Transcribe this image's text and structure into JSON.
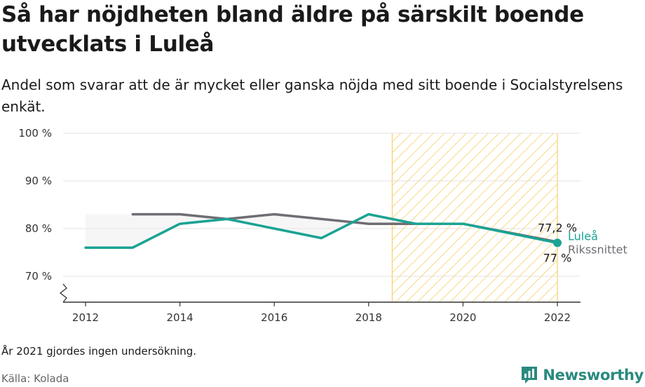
{
  "title": "Så har nöjdheten bland äldre på särskilt boende utvecklats i Luleå",
  "subtitle": "Andel som svarar att de är mycket eller ganska nöjda med sitt boende i Socialstyrelsens enkät.",
  "note": "År 2021 gjordes ingen undersökning.",
  "source": "Källa: Kolada",
  "brand": "Newsworthy",
  "colors": {
    "lulea": "#1aa393",
    "riket": "#6f6d74",
    "hatch": "#f7cf6a",
    "grid": "#e3e3e3"
  },
  "chart_data": {
    "type": "line",
    "x_ticks": [
      2012,
      2014,
      2016,
      2018,
      2020,
      2022
    ],
    "y_ticks": [
      70,
      80,
      90,
      100
    ],
    "y_tick_labels": [
      "70 %",
      "80 %",
      "90 %",
      "100 %"
    ],
    "xlim": [
      2011.5,
      2022.5
    ],
    "ylim": [
      65,
      100
    ],
    "y_axis_break": true,
    "highlight_range": [
      2018.5,
      2022
    ],
    "series": [
      {
        "name": "Luleå",
        "color": "#1aa393",
        "x": [
          2012,
          2013,
          2014,
          2015,
          2016,
          2017,
          2018,
          2019,
          2020,
          2022
        ],
        "values": [
          76,
          76,
          81,
          82,
          80,
          78,
          83,
          81,
          81,
          77
        ]
      },
      {
        "name": "Rikssnittet",
        "color": "#6f6d74",
        "x": [
          2013,
          2014,
          2015,
          2016,
          2017,
          2018,
          2019,
          2020,
          2022
        ],
        "values": [
          83,
          83,
          82,
          83,
          82,
          81,
          81,
          81,
          77.2
        ]
      }
    ],
    "end_labels": {
      "riket_value": "77,2 %",
      "lulea_value": "77 %",
      "lulea_name": "Luleå",
      "riket_name": "Rikssnittet"
    }
  }
}
